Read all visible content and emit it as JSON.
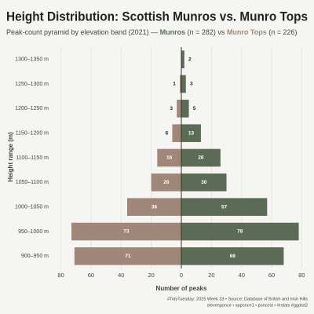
{
  "chart_data": {
    "type": "pyramid",
    "title": "Height Distribution: Scottish Munros vs. Munro Tops",
    "subtitle_parts": [
      "Peak-count pyramid by elevation band (2021) —",
      "(n = 282) vs",
      "(n = 226)"
    ],
    "categories": [
      "900–950 m",
      "950–1000 m",
      "1000–1050 m",
      "1050–1100 m",
      "1100–1150 m",
      "1150–1200 m",
      "1200–1250 m",
      "1250–1300 m",
      "1300–1350 m"
    ],
    "series": [
      {
        "name": "Munro Tops",
        "color": "#a08779",
        "values": [
          -71,
          -73,
          -36,
          -20,
          -16,
          -6,
          -3,
          -1,
          0
        ],
        "value_labels": [
          "71",
          "73",
          "36",
          "20",
          "16",
          "6",
          "3",
          "1",
          null
        ]
      },
      {
        "name": "Munros",
        "color": "#5b6b55",
        "values": [
          68,
          78,
          57,
          30,
          26,
          13,
          5,
          3,
          2
        ]
      }
    ],
    "xlabel": "Number of peaks",
    "ylabel": "Height range (m)",
    "xlim": [
      -85,
      85
    ],
    "xticks": [
      {
        "value": -80,
        "label": "80"
      },
      {
        "value": -60,
        "label": "60"
      },
      {
        "value": -40,
        "label": "40"
      },
      {
        "value": -20,
        "label": "20"
      },
      0,
      20,
      40,
      60,
      80
    ],
    "grid": true,
    "caption": [
      "#TidyTuesday: 2025 Week 33 • Source: Database of British and Irish Hills",
      "stevenponce • spponce1 • poncest • #rstats #ggplot2"
    ]
  }
}
